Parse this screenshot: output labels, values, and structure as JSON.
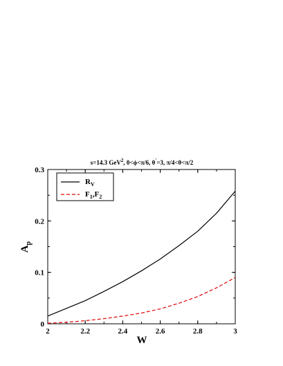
{
  "chart_data": {
    "type": "line",
    "title": "s=14.3 GeV², 0<ϕ<π/6, θ′=3, π/4<θ<π/2",
    "title_parts": {
      "p1": "s=14.3 GeV",
      "sup": "2",
      "p2": ", 0<ϕ<π/6, θ",
      "sup2": "′",
      "p3": "=3, π/4<θ<π/2"
    },
    "xlabel": "W",
    "ylabel": {
      "base": "A",
      "sub": "p"
    },
    "xlim": [
      2,
      3
    ],
    "ylim": [
      0,
      0.3
    ],
    "xticks": [
      2,
      2.2,
      2.4,
      2.6,
      2.8,
      3
    ],
    "xtick_labels": [
      "2",
      "2.2",
      "2.4",
      "2.6",
      "2.8",
      "3"
    ],
    "yticks": [
      0,
      0.1,
      0.2,
      0.3
    ],
    "ytick_labels": [
      "0",
      "0.1",
      "0.2",
      "0.3"
    ],
    "grid": false,
    "legend_position": "top-left",
    "x": [
      2.0,
      2.1,
      2.2,
      2.3,
      2.4,
      2.5,
      2.6,
      2.7,
      2.8,
      2.9,
      3.0
    ],
    "series": [
      {
        "name": "R_V",
        "legend": {
          "base": "R",
          "sub": "V"
        },
        "color": "#000000",
        "dash": "solid",
        "values": [
          0.015,
          0.03,
          0.045,
          0.063,
          0.082,
          0.103,
          0.126,
          0.152,
          0.18,
          0.215,
          0.258
        ]
      },
      {
        "name": "F_1,F_2",
        "legend": {
          "base1": "F",
          "sub1": "1",
          "sep": ",",
          "base2": "F",
          "sub2": "2"
        },
        "color": "#e00000",
        "dash": "dashed",
        "values": [
          0.001,
          0.003,
          0.006,
          0.01,
          0.015,
          0.021,
          0.029,
          0.04,
          0.053,
          0.07,
          0.09
        ]
      }
    ]
  }
}
